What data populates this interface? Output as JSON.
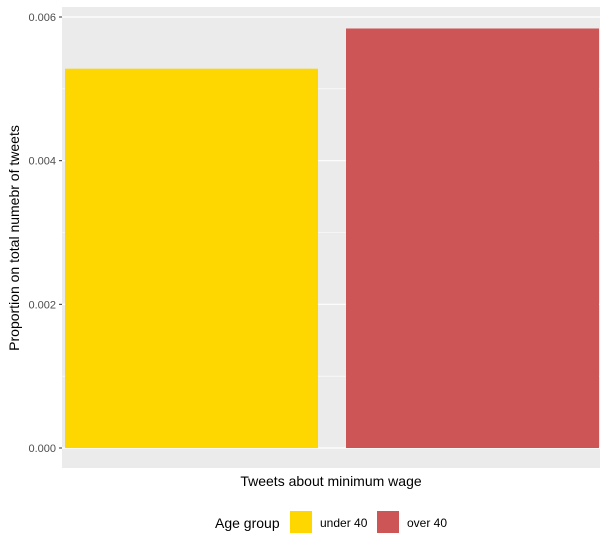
{
  "chart_data": {
    "type": "bar",
    "categories": [
      "Tweets about minimum wage"
    ],
    "xlabel": "Tweets about minimum wage",
    "ylabel": "Proportion on total numebr of tweets",
    "ylim": [
      0,
      0.006
    ],
    "yticks": [
      "0.000",
      "0.002",
      "0.004",
      "0.006"
    ],
    "ytick_values": [
      0,
      0.002,
      0.004,
      0.006
    ],
    "grid": true,
    "legend_position": "bottom",
    "legend_title": "Age group",
    "series": [
      {
        "name": "under 40",
        "values": [
          0.00528
        ],
        "color": "#FFD700"
      },
      {
        "name": "over 40",
        "values": [
          0.00584
        ],
        "color": "#CD5555"
      }
    ]
  }
}
